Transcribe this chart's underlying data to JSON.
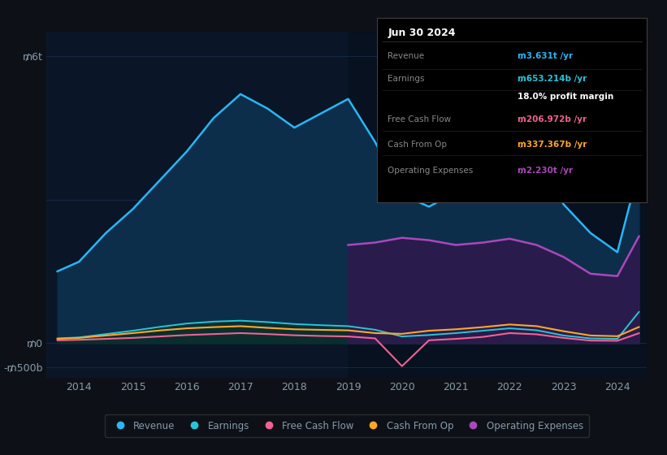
{
  "bg_color": "#0d1117",
  "plot_bg_color": "#0a1628",
  "grid_color": "#1e3050",
  "text_color": "#8899aa",
  "years": [
    2013.6,
    2014.0,
    2014.5,
    2015.0,
    2015.5,
    2016.0,
    2016.5,
    2017.0,
    2017.5,
    2018.0,
    2018.5,
    2019.0,
    2019.5,
    2020.0,
    2020.5,
    2021.0,
    2021.5,
    2022.0,
    2022.5,
    2023.0,
    2023.5,
    2024.0,
    2024.4
  ],
  "revenue": [
    1500,
    1700,
    2300,
    2800,
    3400,
    4000,
    4700,
    5200,
    4900,
    4500,
    4800,
    5100,
    4200,
    3100,
    2850,
    3150,
    3850,
    4300,
    3900,
    2900,
    2300,
    1900,
    3631
  ],
  "earnings": [
    100,
    120,
    190,
    260,
    340,
    410,
    450,
    470,
    440,
    400,
    375,
    355,
    280,
    140,
    170,
    210,
    260,
    310,
    270,
    160,
    100,
    90,
    653
  ],
  "free_cash_flow": [
    60,
    70,
    90,
    110,
    140,
    170,
    190,
    210,
    190,
    165,
    150,
    140,
    100,
    -480,
    60,
    90,
    130,
    210,
    185,
    110,
    55,
    50,
    207
  ],
  "cash_from_op": [
    90,
    110,
    160,
    210,
    265,
    310,
    335,
    355,
    320,
    290,
    278,
    268,
    210,
    195,
    260,
    290,
    335,
    390,
    355,
    250,
    160,
    145,
    337
  ],
  "op_exp_years": [
    2019.0,
    2019.5,
    2020.0,
    2020.5,
    2021.0,
    2021.5,
    2022.0,
    2022.5,
    2023.0,
    2023.5,
    2024.0,
    2024.4
  ],
  "op_expenses": [
    2050,
    2100,
    2200,
    2150,
    2050,
    2100,
    2180,
    2050,
    1800,
    1450,
    1400,
    2230
  ],
  "ylim_min": -720,
  "ylim_max": 6500,
  "xmin": 2013.4,
  "xmax": 2024.55,
  "revenue_color": "#29b6f6",
  "earnings_color": "#26c6da",
  "fcf_color": "#f06292",
  "cash_op_color": "#ffa726",
  "op_exp_color": "#ab47bc",
  "revenue_fill_color": "#0d2e4a",
  "earnings_fill_color": "#0a2e2e",
  "op_exp_fill_color": "#2d1b4e",
  "shaded_start": 2019.0,
  "xticks": [
    2014,
    2015,
    2016,
    2017,
    2018,
    2019,
    2020,
    2021,
    2022,
    2023,
    2024
  ],
  "ytick_vals": [
    -500,
    0,
    6000
  ],
  "ytick_labels": [
    "-₥500b",
    "₥0",
    "₥6t"
  ],
  "legend_labels": [
    "Revenue",
    "Earnings",
    "Free Cash Flow",
    "Cash From Op",
    "Operating Expenses"
  ],
  "legend_colors": [
    "#29b6f6",
    "#26c6da",
    "#f06292",
    "#ffa726",
    "#ab47bc"
  ],
  "tooltip_title": "Jun 30 2024",
  "tooltip_rows": [
    {
      "label": "Revenue",
      "value": "₥3.631t /yr",
      "color": "#29b6f6"
    },
    {
      "label": "Earnings",
      "value": "₥653.214b /yr",
      "color": "#26c6da"
    },
    {
      "label": "",
      "value": "18.0% profit margin",
      "color": "#ffffff"
    },
    {
      "label": "Free Cash Flow",
      "value": "₥206.972b /yr",
      "color": "#f06292"
    },
    {
      "label": "Cash From Op",
      "value": "₥337.367b /yr",
      "color": "#ffa726"
    },
    {
      "label": "Operating Expenses",
      "value": "₥2.230t /yr",
      "color": "#ab47bc"
    }
  ]
}
